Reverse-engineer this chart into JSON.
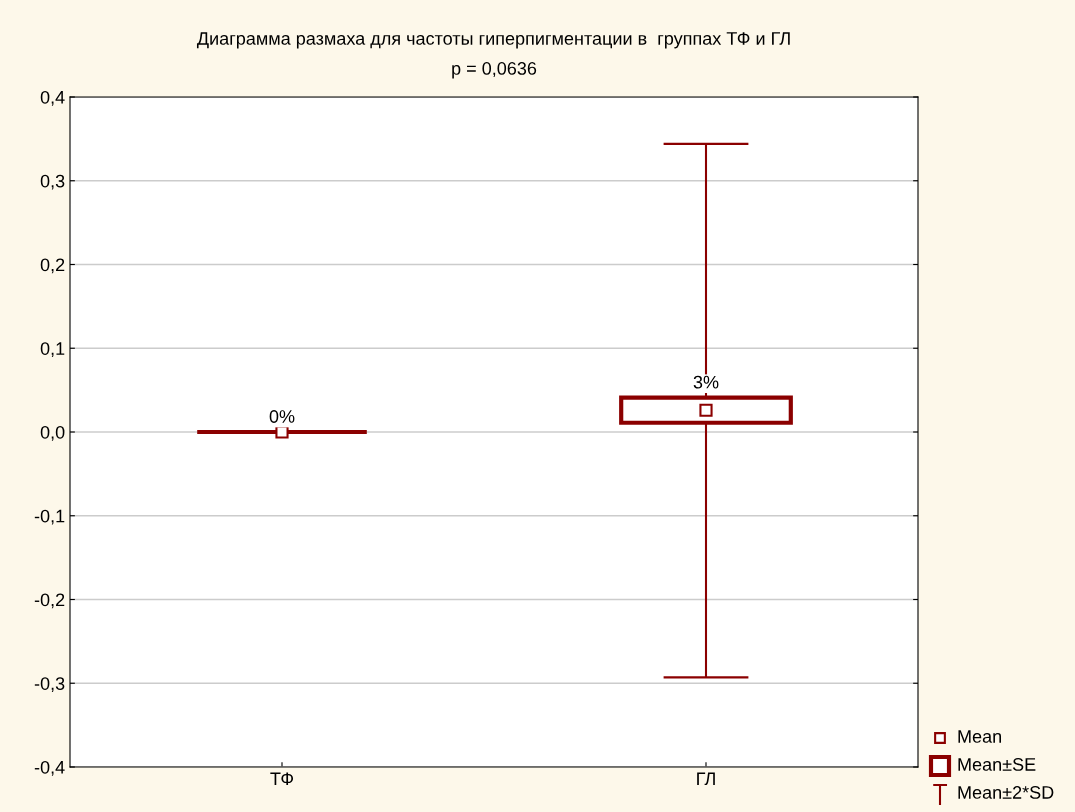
{
  "chart_data": {
    "type": "box",
    "title": "Диаграмма размаха для частоты гиперпигментации в  группах ТФ и ГЛ",
    "subtitle": "p = 0,0636",
    "categories": [
      "ТФ",
      "ГЛ"
    ],
    "boxes": [
      {
        "low": 0,
        "q1": 0,
        "q3": 0,
        "high": 0,
        "mean": 0
      },
      {
        "low": -0.293,
        "q1": 0.011,
        "q3": 0.041,
        "high": 0.344,
        "mean": 0.026
      }
    ],
    "value_labels": [
      "0%",
      "3%"
    ],
    "color": "#8b0000",
    "ylim": [
      -0.4,
      0.4
    ],
    "yticks": [
      {
        "value": -0.4,
        "label": "-0,4"
      },
      {
        "value": -0.3,
        "label": "-0,3"
      },
      {
        "value": -0.2,
        "label": "-0,2"
      },
      {
        "value": -0.1,
        "label": "-0,1"
      },
      {
        "value": 0,
        "label": "0,0"
      },
      {
        "value": 0.1,
        "label": "0,1"
      },
      {
        "value": 0.2,
        "label": "0,2"
      },
      {
        "value": 0.3,
        "label": "0,3"
      },
      {
        "value": 0.4,
        "label": "0,4"
      }
    ],
    "grid": "y",
    "marker": "square",
    "annotations": [
      "Mean",
      "Mean±SE",
      "Mean±2*SD"
    ]
  }
}
